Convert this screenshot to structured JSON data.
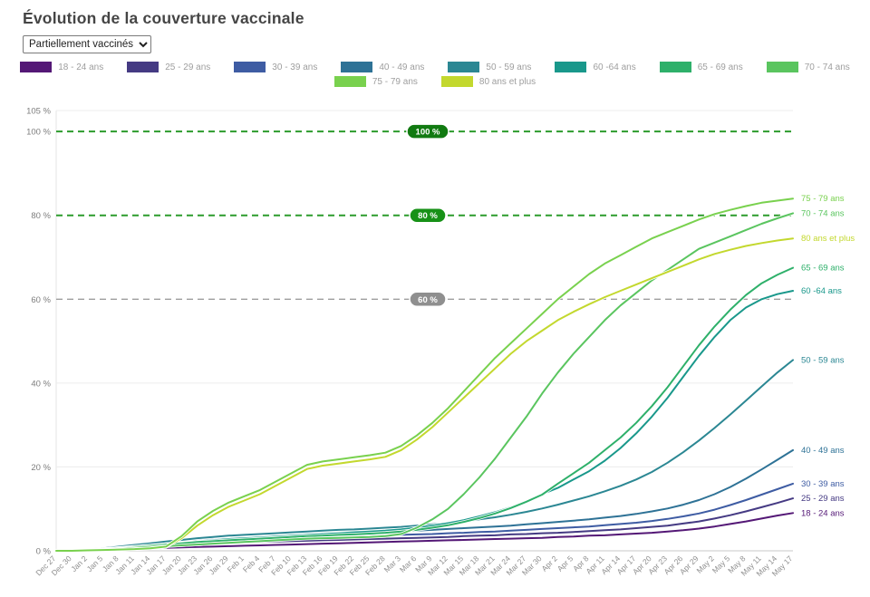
{
  "header": {
    "title": "Évolution de la couverture vaccinale"
  },
  "controls": {
    "filter_value": "Partiellement vaccinés"
  },
  "chart_data": {
    "type": "line",
    "title": "Évolution de la couverture vaccinale",
    "legend_position": "top",
    "grid": "horizontal",
    "ylim": [
      0,
      105
    ],
    "y_axis": {
      "ticks": [
        {
          "label": "105 %",
          "value": 105
        },
        {
          "label": "100 %",
          "value": 100
        },
        {
          "label": "80 %",
          "value": 80
        },
        {
          "label": "60 %",
          "value": 60
        },
        {
          "label": "40 %",
          "value": 40
        },
        {
          "label": "20 %",
          "value": 20
        },
        {
          "label": "0 %",
          "value": 0
        }
      ]
    },
    "reference_lines": [
      {
        "label": "100 %",
        "value": 100,
        "line_color": "#2c9b2c",
        "badge_color": "#117a11",
        "style": "dashed"
      },
      {
        "label": "80 %",
        "value": 80,
        "line_color": "#2c9b2c",
        "badge_color": "#179117",
        "style": "dashed"
      },
      {
        "label": "60 %",
        "value": 60,
        "line_color": "#9e9e9e",
        "badge_color": "#8f8f8f",
        "style": "dashed"
      }
    ],
    "x": [
      "Dec 27",
      "Dec 30",
      "Jan 2",
      "Jan 5",
      "Jan 8",
      "Jan 11",
      "Jan 14",
      "Jan 17",
      "Jan 20",
      "Jan 23",
      "Jan 26",
      "Jan 29",
      "Feb 1",
      "Feb 4",
      "Feb 7",
      "Feb 10",
      "Feb 13",
      "Feb 16",
      "Feb 19",
      "Feb 22",
      "Feb 25",
      "Feb 28",
      "Mar 3",
      "Mar 6",
      "Mar 9",
      "Mar 12",
      "Mar 15",
      "Mar 18",
      "Mar 21",
      "Mar 24",
      "Mar 27",
      "Mar 30",
      "Apr 2",
      "Apr 5",
      "Apr 8",
      "Apr 11",
      "Apr 14",
      "Apr 17",
      "Apr 20",
      "Apr 23",
      "Apr 26",
      "Apr 29",
      "May 2",
      "May 5",
      "May 8",
      "May 11",
      "May 14",
      "May 17"
    ],
    "series": [
      {
        "id": "18-24",
        "name": "18 - 24 ans",
        "color": "#541876",
        "values": [
          0,
          0,
          0.1,
          0.2,
          0.3,
          0.4,
          0.5,
          0.7,
          0.8,
          0.9,
          1.0,
          1.1,
          1.2,
          1.3,
          1.4,
          1.5,
          1.6,
          1.7,
          1.8,
          1.9,
          2.0,
          2.1,
          2.2,
          2.3,
          2.4,
          2.5,
          2.6,
          2.7,
          2.8,
          2.9,
          3.0,
          3.1,
          3.3,
          3.4,
          3.6,
          3.7,
          3.9,
          4.1,
          4.3,
          4.6,
          4.9,
          5.3,
          5.8,
          6.4,
          7.0,
          7.7,
          8.4,
          9.0
        ]
      },
      {
        "id": "25-29",
        "name": "25 - 29 ans",
        "color": "#453a83",
        "values": [
          0,
          0,
          0.1,
          0.3,
          0.5,
          0.7,
          0.9,
          1.1,
          1.3,
          1.5,
          1.7,
          1.8,
          2.0,
          2.1,
          2.2,
          2.3,
          2.4,
          2.5,
          2.6,
          2.7,
          2.8,
          2.9,
          3.0,
          3.1,
          3.2,
          3.3,
          3.5,
          3.6,
          3.7,
          3.9,
          4.0,
          4.2,
          4.3,
          4.5,
          4.7,
          4.9,
          5.1,
          5.4,
          5.7,
          6.0,
          6.5,
          7.0,
          7.7,
          8.5,
          9.4,
          10.4,
          11.4,
          12.5
        ]
      },
      {
        "id": "30-39",
        "name": "30 - 39 ans",
        "color": "#3e5ca3",
        "values": [
          0,
          0,
          0.2,
          0.4,
          0.6,
          0.9,
          1.2,
          1.4,
          1.7,
          1.9,
          2.1,
          2.3,
          2.5,
          2.7,
          2.8,
          3.0,
          3.1,
          3.2,
          3.3,
          3.4,
          3.5,
          3.6,
          3.8,
          3.9,
          4.0,
          4.2,
          4.3,
          4.5,
          4.6,
          4.8,
          5.0,
          5.2,
          5.4,
          5.6,
          5.8,
          6.1,
          6.4,
          6.7,
          7.1,
          7.6,
          8.2,
          8.9,
          9.8,
          10.9,
          12.1,
          13.4,
          14.7,
          16.0
        ]
      },
      {
        "id": "40-49",
        "name": "40 - 49 ans",
        "color": "#2e7296",
        "values": [
          0,
          0,
          0.2,
          0.5,
          0.8,
          1.2,
          1.5,
          1.8,
          2.1,
          2.4,
          2.7,
          2.9,
          3.1,
          3.3,
          3.5,
          3.6,
          3.8,
          3.9,
          4.1,
          4.2,
          4.3,
          4.5,
          4.6,
          4.8,
          5.0,
          5.2,
          5.4,
          5.6,
          5.8,
          6.0,
          6.3,
          6.6,
          6.9,
          7.2,
          7.5,
          7.9,
          8.3,
          8.8,
          9.4,
          10.1,
          11.0,
          12.1,
          13.5,
          15.2,
          17.2,
          19.4,
          21.7,
          24.0
        ]
      },
      {
        "id": "50-59",
        "name": "50 - 59 ans",
        "color": "#2b8793",
        "values": [
          0,
          0,
          0.3,
          0.6,
          1.0,
          1.4,
          1.8,
          2.2,
          2.6,
          3.0,
          3.3,
          3.6,
          3.8,
          4.0,
          4.2,
          4.4,
          4.6,
          4.8,
          5.0,
          5.1,
          5.3,
          5.5,
          5.7,
          6.0,
          6.3,
          6.6,
          7.0,
          7.5,
          8.0,
          8.6,
          9.3,
          10.1,
          11.0,
          12.0,
          13.0,
          14.2,
          15.5,
          17.0,
          18.8,
          21.0,
          23.5,
          26.3,
          29.3,
          32.5,
          35.8,
          39.2,
          42.5,
          45.5
        ]
      },
      {
        "id": "60-64",
        "name": "60 -64 ans",
        "color": "#19988b",
        "values": [
          0,
          0,
          0.2,
          0.4,
          0.7,
          1.0,
          1.3,
          1.6,
          1.9,
          2.2,
          2.5,
          2.8,
          3.0,
          3.2,
          3.4,
          3.6,
          3.8,
          4.0,
          4.2,
          4.4,
          4.6,
          4.8,
          5.1,
          5.5,
          6.0,
          6.6,
          7.3,
          8.2,
          9.2,
          10.4,
          11.8,
          13.5,
          15.0,
          17.0,
          19.0,
          21.5,
          24.5,
          28.0,
          32.0,
          36.5,
          41.5,
          46.5,
          51.0,
          55.0,
          58.0,
          60.0,
          61.2,
          62.0
        ]
      },
      {
        "id": "65-69",
        "name": "65 - 69 ans",
        "color": "#2eb06a",
        "values": [
          0,
          0,
          0.2,
          0.4,
          0.6,
          0.9,
          1.2,
          1.5,
          1.8,
          2.1,
          2.3,
          2.5,
          2.7,
          2.9,
          3.1,
          3.3,
          3.5,
          3.6,
          3.8,
          3.9,
          4.1,
          4.3,
          4.6,
          5.0,
          5.5,
          6.1,
          6.9,
          7.8,
          8.9,
          10.2,
          11.7,
          13.4,
          16.0,
          18.5,
          21.0,
          24.0,
          27.0,
          30.5,
          34.5,
          39.0,
          44.0,
          49.0,
          53.5,
          57.5,
          61.0,
          63.8,
          65.8,
          67.5
        ]
      },
      {
        "id": "70-74",
        "name": "70 - 74 ans",
        "color": "#5ac55f",
        "values": [
          0,
          0,
          0.2,
          0.3,
          0.5,
          0.7,
          0.9,
          1.1,
          1.3,
          1.5,
          1.7,
          1.9,
          2.1,
          2.3,
          2.5,
          2.7,
          2.9,
          3.0,
          3.1,
          3.2,
          3.3,
          3.5,
          4.0,
          5.5,
          7.5,
          10.0,
          13.5,
          17.5,
          22.0,
          27.0,
          32.0,
          37.5,
          42.5,
          47.0,
          51.0,
          55.0,
          58.5,
          61.5,
          64.5,
          67.0,
          69.5,
          72.0,
          73.5,
          75.0,
          76.5,
          78.0,
          79.3,
          80.5
        ]
      },
      {
        "id": "75-79",
        "name": "75 - 79 ans",
        "color": "#79d14e",
        "values": [
          0,
          0,
          0.1,
          0.2,
          0.3,
          0.4,
          0.6,
          1.0,
          3.5,
          7.0,
          9.5,
          11.5,
          13.0,
          14.5,
          16.5,
          18.5,
          20.5,
          21.3,
          21.8,
          22.3,
          22.8,
          23.4,
          25.0,
          27.5,
          30.5,
          34.0,
          38.0,
          42.0,
          46.0,
          49.5,
          53.0,
          56.5,
          60.0,
          63.0,
          66.0,
          68.5,
          70.5,
          72.5,
          74.5,
          76.0,
          77.5,
          79.0,
          80.3,
          81.3,
          82.2,
          83.0,
          83.5,
          84.0
        ]
      },
      {
        "id": "80-plus",
        "name": "80 ans et plus",
        "color": "#c3d82e",
        "values": [
          0,
          0,
          0.1,
          0.2,
          0.3,
          0.4,
          0.5,
          0.9,
          3.0,
          6.0,
          8.5,
          10.5,
          12.0,
          13.5,
          15.5,
          17.5,
          19.5,
          20.3,
          20.8,
          21.3,
          21.8,
          22.4,
          24.0,
          26.5,
          29.5,
          33.0,
          36.5,
          40.0,
          43.5,
          47.0,
          50.0,
          52.5,
          55.0,
          57.0,
          58.8,
          60.5,
          62.0,
          63.5,
          65.0,
          66.5,
          68.0,
          69.5,
          70.8,
          71.8,
          72.7,
          73.4,
          74.0,
          74.5
        ]
      }
    ]
  }
}
